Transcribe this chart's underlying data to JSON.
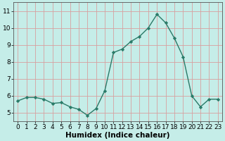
{
  "x": [
    0,
    1,
    2,
    3,
    4,
    5,
    6,
    7,
    8,
    9,
    10,
    11,
    12,
    13,
    14,
    15,
    16,
    17,
    18,
    19,
    20,
    21,
    22,
    23
  ],
  "y": [
    5.7,
    5.9,
    5.9,
    5.8,
    5.55,
    5.6,
    5.35,
    5.2,
    4.85,
    5.25,
    6.3,
    8.55,
    8.75,
    9.2,
    9.5,
    10.0,
    10.8,
    10.3,
    9.4,
    8.3,
    6.0,
    5.35,
    5.8,
    5.8
  ],
  "line_color": "#2a7a68",
  "marker": "D",
  "marker_size": 2.2,
  "bg_color": "#c5ede8",
  "grid_color": "#d8a0a0",
  "xlabel": "Humidex (Indice chaleur)",
  "xlim": [
    -0.5,
    23.5
  ],
  "ylim": [
    4.5,
    11.5
  ],
  "yticks": [
    5,
    6,
    7,
    8,
    9,
    10,
    11
  ],
  "xticks": [
    0,
    1,
    2,
    3,
    4,
    5,
    6,
    7,
    8,
    9,
    10,
    11,
    12,
    13,
    14,
    15,
    16,
    17,
    18,
    19,
    20,
    21,
    22,
    23
  ],
  "xlabel_fontsize": 7.5,
  "tick_fontsize": 6.5,
  "line_width": 1.0
}
